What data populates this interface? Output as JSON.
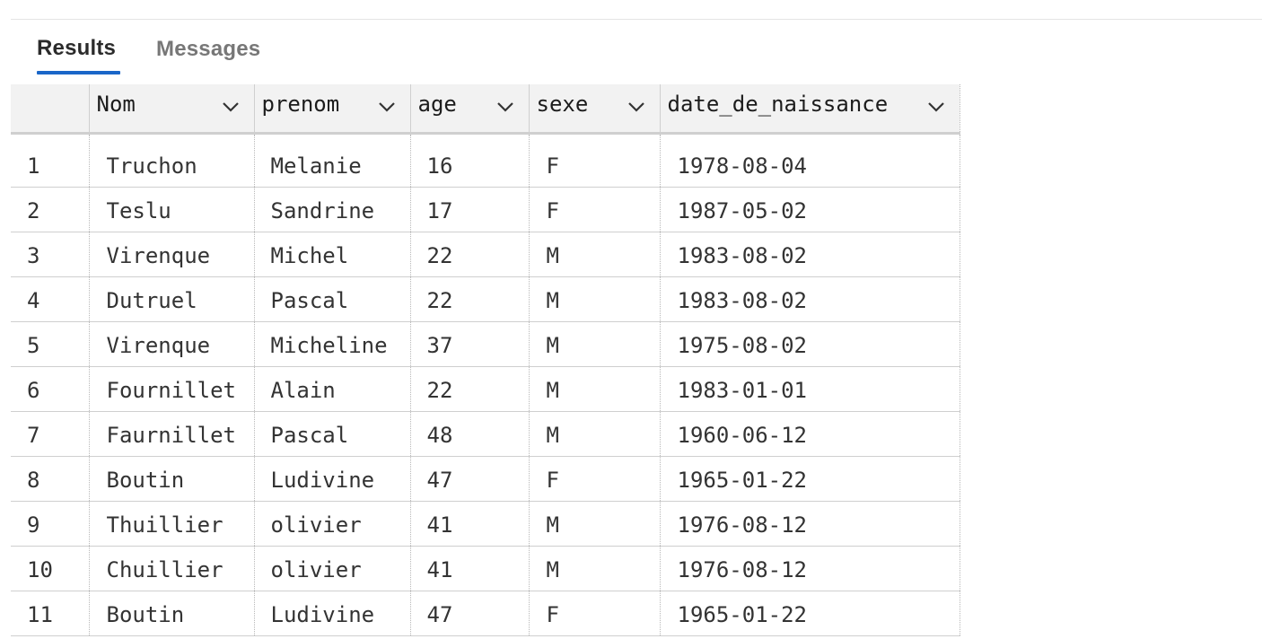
{
  "tabs": {
    "results": "Results",
    "messages": "Messages"
  },
  "columns": [
    "Nom",
    "prenom",
    "age",
    "sexe",
    "date_de_naissance"
  ],
  "rows": [
    [
      "1",
      "Truchon",
      "Melanie",
      "16",
      "F",
      "1978-08-04"
    ],
    [
      "2",
      "Teslu",
      "Sandrine",
      "17",
      "F",
      "1987-05-02"
    ],
    [
      "3",
      "Virenque",
      "Michel",
      "22",
      "M",
      "1983-08-02"
    ],
    [
      "4",
      "Dutruel",
      "Pascal",
      "22",
      "M",
      "1983-08-02"
    ],
    [
      "5",
      "Virenque",
      "Micheline",
      "37",
      "M",
      "1975-08-02"
    ],
    [
      "6",
      "Fournillet",
      "Alain",
      "22",
      "M",
      "1983-01-01"
    ],
    [
      "7",
      "Faurnillet",
      "Pascal",
      "48",
      "M",
      "1960-06-12"
    ],
    [
      "8",
      "Boutin",
      "Ludivine",
      "47",
      "F",
      "1965-01-22"
    ],
    [
      "9",
      "Thuillier",
      "olivier",
      "41",
      "M",
      "1976-08-12"
    ],
    [
      "10",
      "Chuillier",
      "olivier",
      "41",
      "M",
      "1976-08-12"
    ],
    [
      "11",
      "Boutin",
      "Ludivine",
      "47",
      "F",
      "1965-01-22"
    ]
  ],
  "colors": {
    "accent": "#1a66c8"
  }
}
